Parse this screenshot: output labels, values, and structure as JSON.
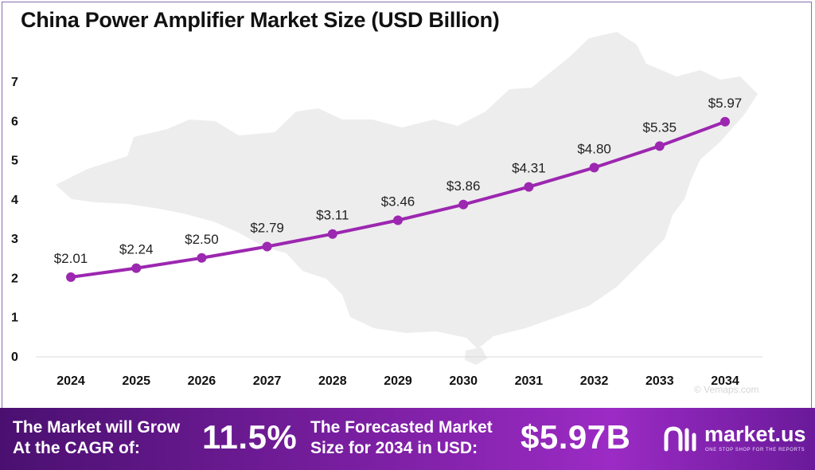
{
  "chart_data": {
    "type": "line",
    "title": "China Power Amplifier Market Size (USD Billion)",
    "xlabel": "",
    "ylabel": "",
    "categories": [
      "2024",
      "2025",
      "2026",
      "2027",
      "2028",
      "2029",
      "2030",
      "2031",
      "2032",
      "2033",
      "2034"
    ],
    "values": [
      2.01,
      2.24,
      2.5,
      2.79,
      3.11,
      3.46,
      3.86,
      4.31,
      4.8,
      5.35,
      5.97
    ],
    "data_labels": [
      "$2.01",
      "$2.24",
      "$2.50",
      "$2.79",
      "$3.11",
      "$3.46",
      "$3.86",
      "$4.31",
      "$4.80",
      "$5.35",
      "$5.97"
    ],
    "yticks": [
      "0",
      "1",
      "2",
      "3",
      "4",
      "5",
      "6",
      "7"
    ],
    "ylim": [
      0,
      7
    ],
    "grid": false,
    "legend": "none",
    "line_color": "#9c27b0"
  },
  "watermark": "© Vemaps.com",
  "footer": {
    "cagr_text_line1": "The Market will Grow",
    "cagr_text_line2": "At the CAGR of:",
    "cagr_value": "11.5%",
    "forecast_text_line1": "The Forecasted Market",
    "forecast_text_line2": "Size for 2034 in USD:",
    "forecast_value": "$5.97B"
  },
  "logo": {
    "name": "market.us",
    "tagline": "ONE STOP SHOP FOR THE REPORTS",
    "icon": "market-us-logo-icon"
  }
}
